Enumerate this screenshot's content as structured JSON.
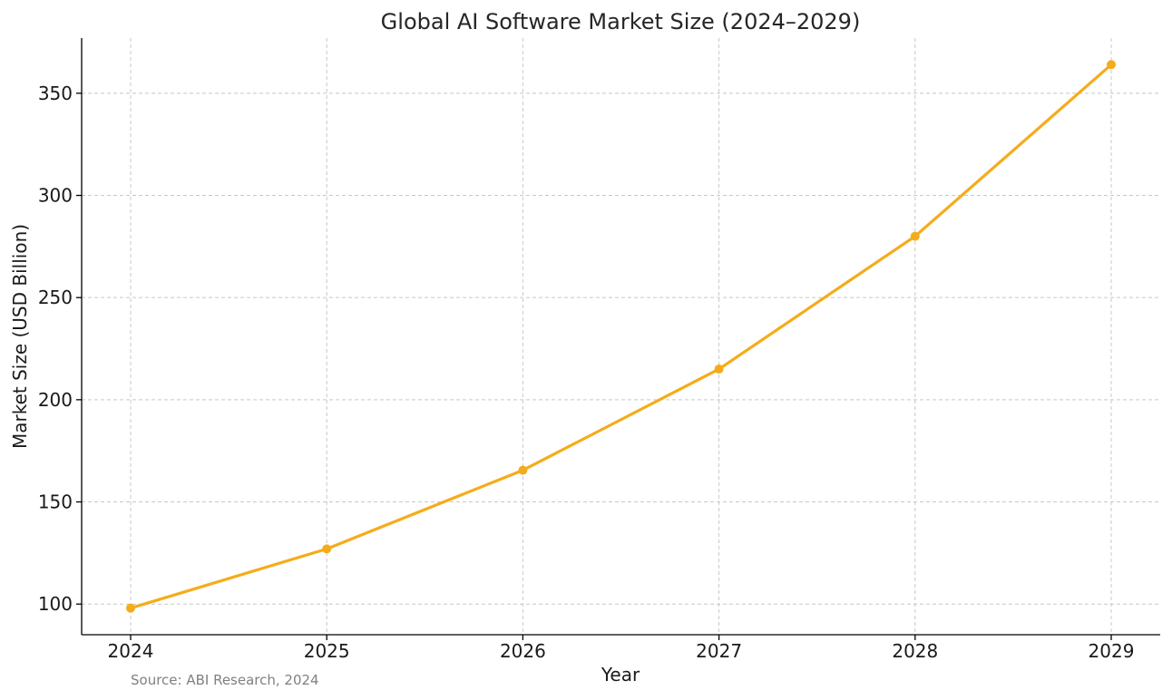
{
  "chart_data": {
    "type": "line",
    "title": "Global AI Software Market Size (2024–2029)",
    "xlabel": "Year",
    "ylabel": "Market Size (USD Billion)",
    "x": [
      "2024",
      "2025",
      "2026",
      "2027",
      "2028",
      "2029"
    ],
    "series": [
      {
        "values": [
          98,
          127,
          165.5,
          215,
          280,
          364
        ],
        "color": "#F5AC1A"
      }
    ],
    "yticks": [
      100,
      150,
      200,
      250,
      300,
      350
    ],
    "ylim": [
      85,
      377
    ],
    "grid": true,
    "marker": "circle"
  },
  "source_note": "Source: ABI Research, 2024"
}
